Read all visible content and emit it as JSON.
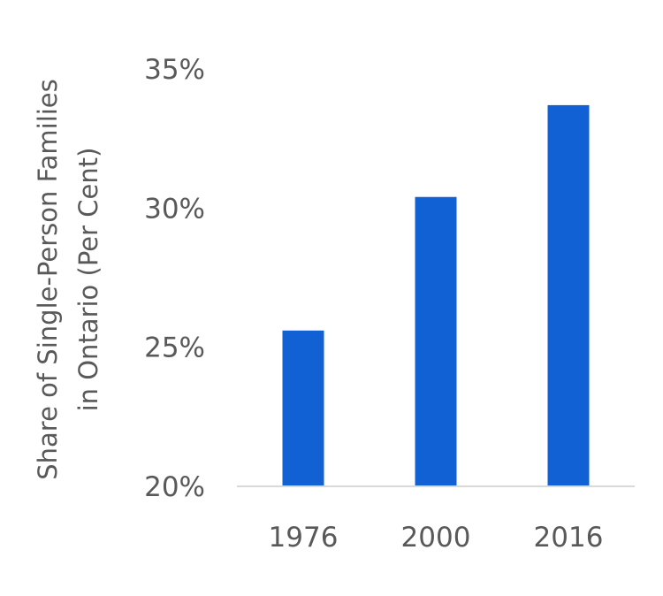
{
  "chart_data": {
    "type": "bar",
    "categories": [
      "1976",
      "2000",
      "2016"
    ],
    "values": [
      25.6,
      30.4,
      33.7
    ],
    "ylabel_lines": [
      "Share of Single-Person Families",
      "in Ontario (Per Cent)"
    ],
    "y_ticks": [
      "20%",
      "25%",
      "30%",
      "35%"
    ],
    "y_tick_values": [
      20,
      25,
      30,
      35
    ],
    "ylim": [
      20,
      35
    ],
    "grid": false,
    "legend": "none",
    "bar_color": "#1160D4",
    "axis_color": "#D9D9D9"
  }
}
